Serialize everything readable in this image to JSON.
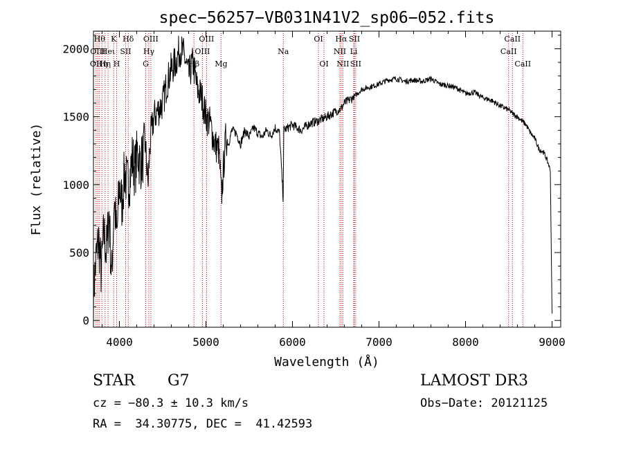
{
  "chart_data": {
    "type": "line",
    "title": "spec−56257−VB031N41V2_sp06−052.fits",
    "xlabel": "Wavelength (Å)",
    "ylabel": "Flux (relative)",
    "xlim": [
      3700,
      9100
    ],
    "ylim": [
      -50,
      2130
    ],
    "xticks": [
      4000,
      5000,
      6000,
      7000,
      8000,
      9000
    ],
    "yticks": [
      0,
      500,
      1000,
      1500,
      2000
    ],
    "grid": false,
    "series": [
      {
        "x": [
          3700,
          3730,
          3760,
          3790,
          3820,
          3850,
          3880,
          3910,
          3940,
          3970,
          4000,
          4030,
          4060,
          4090,
          4120,
          4150,
          4180,
          4210,
          4240,
          4270,
          4300,
          4330,
          4360,
          4400,
          4450,
          4500,
          4550,
          4600,
          4650,
          4700,
          4750,
          4800,
          4850,
          4900,
          4950,
          5000,
          5050,
          5100,
          5150,
          5180,
          5200,
          5230,
          5260,
          5300,
          5350,
          5400,
          5450,
          5500,
          5550,
          5600,
          5650,
          5700,
          5750,
          5800,
          5850,
          5892,
          5900,
          5950,
          6000,
          6100,
          6200,
          6300,
          6400,
          6450,
          6500,
          6563,
          6600,
          6650,
          6700,
          6800,
          6900,
          7000,
          7100,
          7200,
          7300,
          7400,
          7500,
          7600,
          7700,
          7800,
          7900,
          8000,
          8100,
          8200,
          8300,
          8400,
          8500,
          8550,
          8600,
          8650,
          8700,
          8750,
          8800,
          8850,
          8900,
          8930,
          8960,
          8980,
          9000
        ],
        "y": [
          200,
          450,
          600,
          350,
          650,
          500,
          800,
          300,
          900,
          600,
          1000,
          850,
          1100,
          1000,
          1050,
          1200,
          1100,
          1250,
          1150,
          1200,
          1300,
          1000,
          1350,
          1500,
          1550,
          1600,
          1750,
          1850,
          1900,
          2000,
          1950,
          1800,
          1900,
          1700,
          1650,
          1500,
          1450,
          1300,
          1250,
          900,
          1100,
          1350,
          1300,
          1400,
          1380,
          1300,
          1400,
          1350,
          1420,
          1380,
          1350,
          1400,
          1360,
          1420,
          1380,
          900,
          1400,
          1420,
          1440,
          1400,
          1450,
          1470,
          1500,
          1520,
          1540,
          1560,
          1600,
          1620,
          1640,
          1700,
          1720,
          1740,
          1770,
          1780,
          1760,
          1770,
          1760,
          1780,
          1740,
          1730,
          1710,
          1670,
          1680,
          1640,
          1620,
          1580,
          1550,
          1520,
          1500,
          1470,
          1440,
          1380,
          1340,
          1260,
          1240,
          1200,
          1150,
          1100,
          50
        ]
      }
    ],
    "lines": [
      {
        "x": 3730,
        "label": "OII",
        "row": 2
      },
      {
        "x": 3750,
        "label": "OIII",
        "row": 1
      },
      {
        "x": 3770,
        "label": "Hθ",
        "row": 0
      },
      {
        "x": 3797,
        "label": "Hη",
        "row": 2
      },
      {
        "x": 3835,
        "label": "Hη",
        "row": 2
      },
      {
        "x": 3869,
        "label": "Heι",
        "row": 1
      },
      {
        "x": 3934,
        "label": "K",
        "row": 0
      },
      {
        "x": 3968,
        "label": "H",
        "row": 2
      },
      {
        "x": 4072,
        "label": "SII",
        "row": 1
      },
      {
        "x": 4102,
        "label": "Hδ",
        "row": 0
      },
      {
        "x": 4304,
        "label": "G",
        "row": 2
      },
      {
        "x": 4340,
        "label": "Hγ",
        "row": 1
      },
      {
        "x": 4363,
        "label": "OIII",
        "row": 0
      },
      {
        "x": 4861,
        "label": "Hβ",
        "row": 2
      },
      {
        "x": 4959,
        "label": "OIII",
        "row": 1
      },
      {
        "x": 5007,
        "label": "OIII",
        "row": 0
      },
      {
        "x": 5175,
        "label": "Mg",
        "row": 2
      },
      {
        "x": 5894,
        "label": "Na",
        "row": 1
      },
      {
        "x": 6300,
        "label": "OI",
        "row": 0
      },
      {
        "x": 6364,
        "label": "OI",
        "row": 2
      },
      {
        "x": 6548,
        "label": "NII",
        "row": 1
      },
      {
        "x": 6563,
        "label": "Hα",
        "row": 0
      },
      {
        "x": 6583,
        "label": "NII",
        "row": 2
      },
      {
        "x": 6708,
        "label": "Li",
        "row": 1
      },
      {
        "x": 6716,
        "label": "SII",
        "row": 0
      },
      {
        "x": 6731,
        "label": "SII",
        "row": 2
      },
      {
        "x": 8498,
        "label": "CaII",
        "row": 1
      },
      {
        "x": 8542,
        "label": "CaII",
        "row": 0
      },
      {
        "x": 8662,
        "label": "CaII",
        "row": 2
      }
    ]
  },
  "info": {
    "object_class": "STAR",
    "subclass": "G7",
    "survey": "LAMOST DR3",
    "redshift": "cz = −80.3 ± 10.3 km/s",
    "obs_date": "Obs−Date: 20121125",
    "coords": "RA =  34.30775, DEC =  41.42593"
  }
}
